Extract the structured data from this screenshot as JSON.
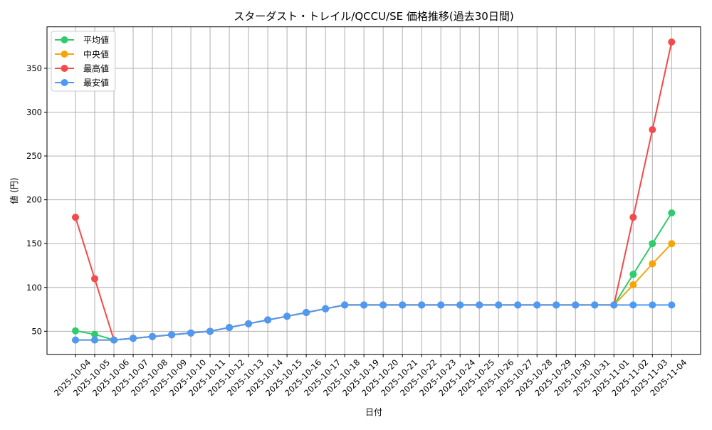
{
  "chart_data": {
    "type": "line",
    "title": "スターダスト・トレイル/QCCU/SE 価格推移(過去30日間)",
    "xlabel": "日付",
    "ylabel": "値 (円)",
    "ylim": [
      23.7,
      397.3
    ],
    "yticks": [
      50,
      100,
      150,
      200,
      250,
      300,
      350
    ],
    "grid": true,
    "legend_position": "upper left",
    "categories": [
      "2025-10-04",
      "2025-10-05",
      "2025-10-06",
      "2025-10-07",
      "2025-10-08",
      "2025-10-09",
      "2025-10-10",
      "2025-10-11",
      "2025-10-12",
      "2025-10-13",
      "2025-10-14",
      "2025-10-15",
      "2025-10-16",
      "2025-10-17",
      "2025-10-18",
      "2025-10-19",
      "2025-10-20",
      "2025-10-21",
      "2025-10-22",
      "2025-10-23",
      "2025-10-24",
      "2025-10-25",
      "2025-10-26",
      "2025-10-27",
      "2025-10-28",
      "2025-10-29",
      "2025-10-30",
      "2025-10-31",
      "2025-11-01",
      "2025-11-02",
      "2025-11-03",
      "2025-11-04"
    ],
    "series": [
      {
        "name": "平均値",
        "color": "#2fcc6b",
        "values": [
          50.5,
          46.5,
          40,
          42,
          44,
          46,
          48,
          50,
          54.3,
          58.6,
          62.9,
          67.1,
          71.4,
          75.7,
          80,
          80,
          80,
          80,
          80,
          80,
          80,
          80,
          80,
          80,
          80,
          80,
          80,
          80,
          80,
          115,
          150,
          185
        ]
      },
      {
        "name": "中央値",
        "color": "#f5a50a",
        "values": [
          40,
          40,
          40,
          42,
          44,
          46,
          48,
          50,
          54.3,
          58.6,
          62.9,
          67.1,
          71.4,
          75.7,
          80,
          80,
          80,
          80,
          80,
          80,
          80,
          80,
          80,
          80,
          80,
          80,
          80,
          80,
          80,
          103,
          127,
          150
        ]
      },
      {
        "name": "最高値",
        "color": "#f44a4a",
        "values": [
          180,
          110,
          40,
          42,
          44,
          46,
          48,
          50,
          54.3,
          58.6,
          62.9,
          67.1,
          71.4,
          75.7,
          80,
          80,
          80,
          80,
          80,
          80,
          80,
          80,
          80,
          80,
          80,
          80,
          80,
          80,
          80,
          180,
          280,
          380
        ]
      },
      {
        "name": "最安値",
        "color": "#4d9af5",
        "values": [
          40,
          40,
          40,
          42,
          44,
          46,
          48,
          50,
          54.3,
          58.6,
          62.9,
          67.1,
          71.4,
          75.7,
          80,
          80,
          80,
          80,
          80,
          80,
          80,
          80,
          80,
          80,
          80,
          80,
          80,
          80,
          80,
          80,
          80,
          80
        ]
      }
    ]
  },
  "colors": {
    "grid": "#b0b0b0",
    "axis": "#000000",
    "background": "#ffffff",
    "legend_border": "#cccccc"
  }
}
